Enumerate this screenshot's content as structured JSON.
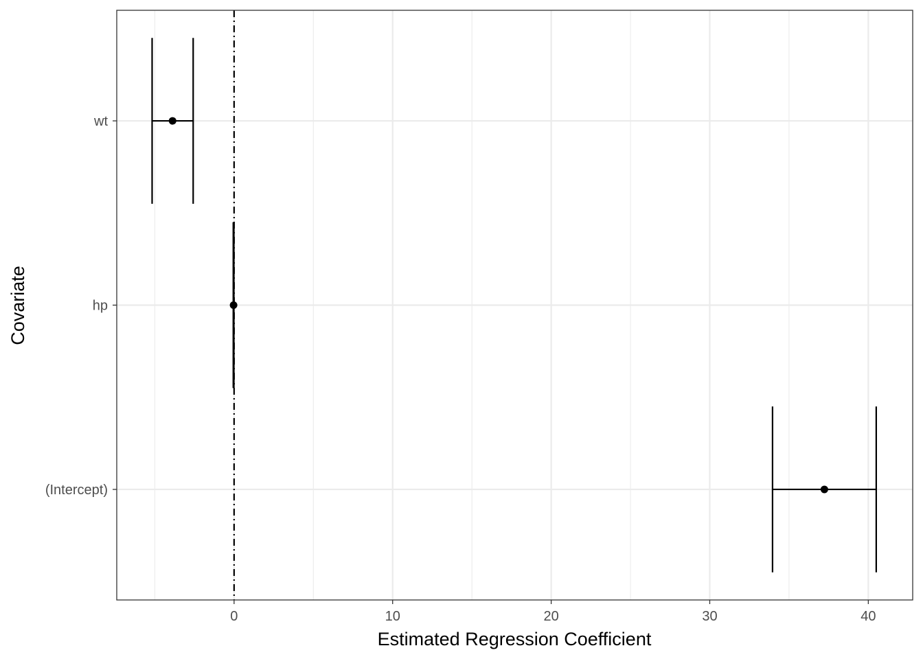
{
  "chart_data": {
    "type": "scatter",
    "title": "",
    "xlabel": "Estimated Regression Coefficient",
    "ylabel": "Covariate",
    "categories": [
      "(Intercept)",
      "hp",
      "wt"
    ],
    "series": [
      {
        "points": [
          {
            "covariate": "(Intercept)",
            "estimate": 37.23,
            "lower": 33.96,
            "upper": 40.5
          },
          {
            "covariate": "hp",
            "estimate": -0.032,
            "lower": -0.05,
            "upper": -0.013
          },
          {
            "covariate": "wt",
            "estimate": -3.88,
            "lower": -5.17,
            "upper": -2.58
          }
        ]
      }
    ],
    "x_ticks": [
      0,
      10,
      20,
      30,
      40
    ],
    "x_tick_labels": [
      "0",
      "10",
      "20",
      "30",
      "40"
    ],
    "xlim": [
      -7.4,
      42.8
    ],
    "reference_line": {
      "x": 0,
      "style": "dot-dash"
    },
    "grid": true,
    "legend": "none"
  }
}
